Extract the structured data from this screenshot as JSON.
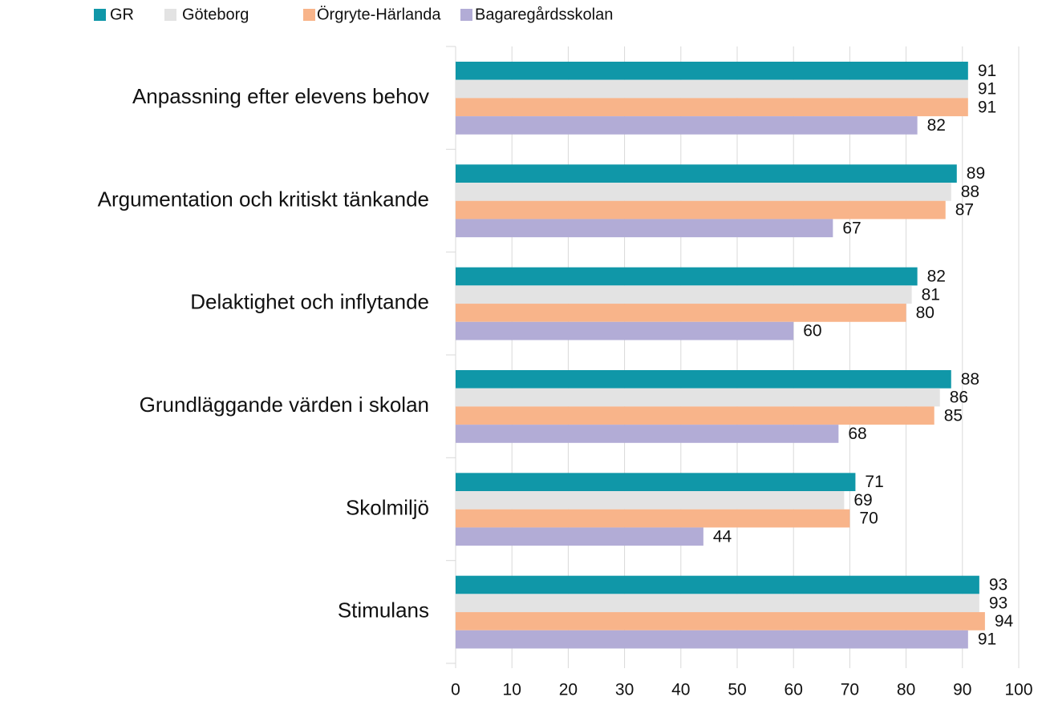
{
  "chart_data": {
    "type": "bar",
    "orientation": "horizontal",
    "categories": [
      "Anpassning efter elevens behov",
      "Argumentation och kritiskt tänkande",
      "Delaktighet och inflytande",
      "Grundläggande värden i skolan",
      "Skolmiljö",
      "Stimulans"
    ],
    "series": [
      {
        "name": "GR",
        "color": "#1097a8",
        "values": [
          91,
          89,
          82,
          88,
          71,
          93
        ]
      },
      {
        "name": "Göteborg",
        "color": "#e3e3e3",
        "values": [
          91,
          88,
          81,
          86,
          69,
          93
        ]
      },
      {
        "name": "Örgryte-Härlanda",
        "color": "#f8b48a",
        "values": [
          91,
          87,
          80,
          85,
          70,
          94
        ]
      },
      {
        "name": "Bagaregårdsskolan",
        "color": "#b2acd6",
        "values": [
          82,
          67,
          60,
          68,
          44,
          91
        ]
      }
    ],
    "xlim": [
      0,
      100
    ],
    "xticks": [
      0,
      10,
      20,
      30,
      40,
      50,
      60,
      70,
      80,
      90,
      100
    ],
    "grid": true,
    "legend": "top"
  }
}
